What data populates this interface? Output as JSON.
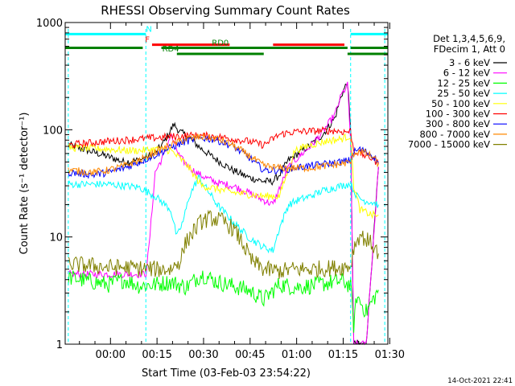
{
  "chart_data": {
    "type": "line",
    "title": "RHESSI Observing Summary Count Rates",
    "xlabel": "Start Time (03-Feb-03 23:54:22)",
    "ylabel": "Count Rate (s⁻¹ detector⁻¹)",
    "x_unit": "minutes",
    "xlim": [
      -9,
      95
    ],
    "ylim": [
      1,
      1000
    ],
    "yscale": "log",
    "grid": false,
    "x_ticks": [
      {
        "value": 5.6,
        "label": "00:00"
      },
      {
        "value": 20.6,
        "label": "00:15"
      },
      {
        "value": 35.6,
        "label": "00:30"
      },
      {
        "value": 50.6,
        "label": "00:45"
      },
      {
        "value": 65.6,
        "label": "01:00"
      },
      {
        "value": 80.6,
        "label": "01:15"
      },
      {
        "value": 95.6,
        "label": "01:30"
      }
    ],
    "y_ticks": [
      {
        "value": 1,
        "label": "1"
      },
      {
        "value": 10,
        "label": "10"
      },
      {
        "value": 100,
        "label": "100"
      },
      {
        "value": 1000,
        "label": "1000"
      }
    ],
    "legend": {
      "placement": "right",
      "header": [
        "Det 1,3,4,5,6,9,",
        "FDecim 1, Att 0"
      ]
    },
    "series": [
      {
        "name": "3 - 6 keV",
        "color": "#000000",
        "x": [
          -8,
          0,
          5,
          10,
          15,
          20,
          23,
          26,
          28,
          31,
          35,
          40,
          45,
          50,
          55,
          58,
          60,
          63,
          66,
          70,
          74,
          78,
          80,
          82,
          83,
          84,
          85,
          88,
          92
        ],
        "y": [
          72,
          62,
          56,
          50,
          52,
          60,
          78,
          112,
          96,
          84,
          66,
          52,
          42,
          36,
          33,
          33,
          38,
          52,
          60,
          72,
          90,
          130,
          210,
          280,
          95,
          1.0,
          1.0,
          1.0,
          45
        ]
      },
      {
        "name": "6 - 12 keV",
        "color": "#ff00ff",
        "x": [
          -8,
          5,
          10,
          15,
          17,
          18,
          20,
          23,
          25,
          28,
          30,
          33,
          36,
          40,
          45,
          50,
          55,
          58,
          60,
          63,
          66,
          70,
          74,
          78,
          80,
          82,
          83,
          84,
          85,
          88,
          92
        ],
        "y": [
          4.5,
          4.5,
          4.5,
          4.5,
          4.5,
          8,
          40,
          60,
          90,
          55,
          48,
          40,
          36,
          32,
          30,
          26,
          22,
          20,
          28,
          45,
          55,
          70,
          95,
          140,
          210,
          260,
          80,
          1.0,
          1.0,
          1.0,
          45
        ]
      },
      {
        "name": "12 - 25 keV",
        "color": "#00ff00",
        "x": [
          -8,
          5,
          10,
          15,
          20,
          25,
          30,
          35,
          40,
          45,
          50,
          55,
          60,
          65,
          70,
          75,
          80,
          83,
          84,
          85,
          88,
          92
        ],
        "y": [
          4.2,
          3.6,
          4.0,
          3.5,
          3.6,
          3.8,
          3.4,
          4.5,
          3.8,
          3.5,
          3.2,
          2.6,
          3.6,
          3.4,
          3.5,
          3.7,
          3.9,
          3.5,
          1.5,
          2.8,
          2.0,
          3.2
        ]
      },
      {
        "name": "25 - 50 keV",
        "color": "#00ffff",
        "x": [
          -8,
          5,
          10,
          15,
          20,
          25,
          27,
          29,
          31,
          34,
          37,
          40,
          45,
          50,
          55,
          58,
          60,
          63,
          66,
          70,
          74,
          78,
          80,
          82,
          83,
          85,
          87,
          90,
          92
        ],
        "y": [
          31,
          31,
          30,
          29,
          24,
          18,
          10,
          14,
          24,
          36,
          27,
          20,
          14,
          10,
          8,
          7.5,
          12,
          20,
          22,
          24,
          27,
          29,
          30,
          31,
          31,
          24,
          22,
          21,
          20
        ]
      },
      {
        "name": "50 - 100 keV",
        "color": "#ffff00",
        "x": [
          -8,
          5,
          10,
          15,
          20,
          25,
          30,
          35,
          40,
          45,
          50,
          55,
          60,
          65,
          70,
          75,
          80,
          83,
          84,
          86,
          90,
          92
        ],
        "y": [
          68,
          66,
          64,
          64,
          66,
          64,
          48,
          30,
          28,
          26,
          25,
          24,
          24,
          64,
          72,
          78,
          82,
          88,
          30,
          18,
          16,
          16
        ]
      },
      {
        "name": "100 - 300 keV",
        "color": "#ff0000",
        "x": [
          -8,
          0,
          5,
          10,
          15,
          20,
          25,
          30,
          35,
          40,
          45,
          50,
          55,
          60,
          63,
          66,
          70,
          74,
          78,
          80,
          83,
          84,
          86,
          90,
          92
        ],
        "y": [
          72,
          76,
          78,
          80,
          82,
          84,
          86,
          88,
          88,
          86,
          82,
          78,
          72,
          90,
          94,
          96,
          97,
          98,
          98,
          96,
          96,
          64,
          60,
          54,
          48
        ]
      },
      {
        "name": "300 - 800 keV",
        "color": "#0000ff",
        "x": [
          -8,
          0,
          5,
          10,
          15,
          20,
          25,
          30,
          35,
          40,
          45,
          50,
          55,
          60,
          65,
          70,
          75,
          80,
          83,
          84,
          86,
          90,
          92
        ],
        "y": [
          40,
          38,
          40,
          44,
          50,
          58,
          68,
          78,
          84,
          80,
          70,
          56,
          42,
          42,
          44,
          46,
          48,
          50,
          52,
          62,
          66,
          58,
          50
        ]
      },
      {
        "name": "800 - 7000 keV",
        "color": "#ff8800",
        "x": [
          -8,
          0,
          5,
          10,
          15,
          20,
          25,
          30,
          35,
          40,
          45,
          50,
          55,
          60,
          65,
          70,
          75,
          80,
          83,
          84,
          86,
          90,
          92
        ],
        "y": [
          42,
          40,
          42,
          46,
          52,
          62,
          72,
          82,
          86,
          82,
          72,
          58,
          46,
          44,
          44,
          44,
          46,
          48,
          50,
          60,
          64,
          56,
          48
        ]
      },
      {
        "name": "7000 - 15000 keV",
        "color": "#808000",
        "x": [
          -8,
          0,
          5,
          10,
          15,
          20,
          25,
          28,
          30,
          33,
          35,
          38,
          42,
          45,
          48,
          51,
          55,
          60,
          65,
          70,
          75,
          80,
          83,
          84,
          86,
          90,
          92
        ],
        "y": [
          5.6,
          5.4,
          5.2,
          5.2,
          5.1,
          5.0,
          5.0,
          6.0,
          9.0,
          12.0,
          14.0,
          15.0,
          14.0,
          12.0,
          9.0,
          6.0,
          5.0,
          4.8,
          5.0,
          5.0,
          5.1,
          5.2,
          5.4,
          8.0,
          10.5,
          8.5,
          7.0
        ]
      }
    ],
    "flag_bars": [
      {
        "label": "N",
        "color": "#00ffff",
        "level": 780,
        "segments": [
          [
            -9,
            17
          ],
          [
            83,
            95
          ]
        ],
        "label_at": 18
      },
      {
        "label": "F",
        "color": "#ff0000",
        "level": 620,
        "segments": [
          [
            19,
            44
          ],
          [
            58,
            81
          ]
        ],
        "label_at": 17.5
      },
      {
        "label": "RD0",
        "color": "#008000",
        "level": 580,
        "segments": [
          [
            -9,
            16
          ],
          [
            22,
            82
          ],
          [
            83,
            95
          ]
        ],
        "label_at": 41
      },
      {
        "label": "RD4",
        "color": "#008000",
        "level": 510,
        "segments": [
          [
            27,
            55
          ],
          [
            82,
            95
          ]
        ],
        "label_at": 25
      }
    ],
    "eclipse_lines": [
      {
        "x": -8,
        "color": "#00ffff"
      },
      {
        "x": 17,
        "color": "#00ffff"
      },
      {
        "x": 83,
        "color": "#00ffff"
      },
      {
        "x": 94,
        "color": "#00ffff"
      }
    ]
  },
  "timestamp": "14-Oct-2021 22:41"
}
